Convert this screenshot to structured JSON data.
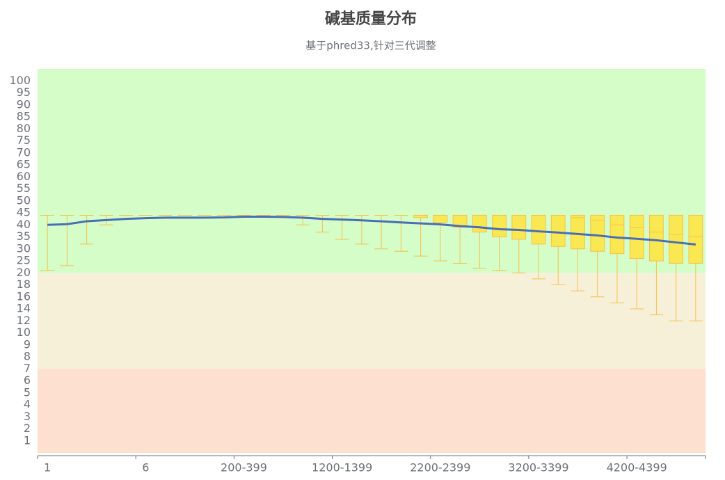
{
  "chart_data": {
    "type": "boxplot",
    "title": "碱基质量分布",
    "subtitle": "基于phred33,针对三代调整",
    "categories": [
      "1",
      null,
      null,
      null,
      null,
      "6",
      null,
      null,
      null,
      null,
      "200-399",
      null,
      null,
      null,
      null,
      "1200-1399",
      null,
      null,
      null,
      null,
      "2200-2399",
      null,
      null,
      null,
      null,
      "3200-3399",
      null,
      null,
      null,
      null,
      "4200-4399",
      null,
      null,
      null
    ],
    "boxes": {
      "low": [
        21,
        23,
        32,
        40,
        44,
        44,
        44,
        44,
        44,
        44,
        44,
        44,
        44,
        40,
        37,
        34,
        32,
        30,
        29,
        27,
        25,
        24,
        22,
        21,
        20,
        19,
        18,
        17,
        16,
        15,
        14,
        13,
        12,
        12
      ],
      "q1": [
        44,
        44,
        44,
        44,
        44,
        44,
        44,
        44,
        44,
        44,
        44,
        44,
        44,
        44,
        44,
        44,
        44,
        44,
        44,
        43,
        41,
        39,
        37,
        35,
        34,
        32,
        31,
        30,
        29,
        28,
        26,
        25,
        24,
        24
      ],
      "median": [
        44,
        44,
        44,
        44,
        44,
        44,
        44,
        44,
        44,
        44,
        44,
        44,
        44,
        44,
        44,
        44,
        44,
        44,
        44,
        44,
        44,
        44,
        44,
        44,
        44,
        44,
        44,
        43,
        42,
        40,
        39,
        37,
        36,
        35
      ],
      "q3": [
        44,
        44,
        44,
        44,
        44,
        44,
        44,
        44,
        44,
        44,
        44,
        44,
        44,
        44,
        44,
        44,
        44,
        44,
        44,
        44,
        44,
        44,
        44,
        44,
        44,
        44,
        44,
        44,
        44,
        44,
        44,
        44,
        44,
        44
      ],
      "high": [
        44,
        44,
        44,
        44,
        44,
        44,
        44,
        44,
        44,
        44,
        44,
        44,
        44,
        44,
        44,
        44,
        44,
        44,
        44,
        44,
        44,
        44,
        44,
        44,
        44,
        44,
        44,
        44,
        44,
        44,
        44,
        44,
        44,
        44
      ]
    },
    "box_color": "#f9e852",
    "box_stroke": "#f6c04c",
    "line": {
      "color": "#4a6db5",
      "values": [
        40,
        40.3,
        41.5,
        42,
        42.5,
        42.8,
        43,
        43,
        43,
        43.1,
        43.4,
        43.4,
        43.3,
        43,
        42.5,
        42.2,
        41.9,
        41.5,
        41,
        40.6,
        40.2,
        39.5,
        39,
        38.2,
        37.9,
        37.3,
        36.8,
        36.2,
        35.6,
        34.7,
        34.2,
        33.6,
        32.7,
        31.8
      ]
    },
    "ylim": [
      0,
      105
    ],
    "yticks": [
      1,
      2,
      3,
      4,
      5,
      6,
      7,
      8,
      9,
      10,
      12,
      14,
      16,
      18,
      20,
      25,
      30,
      35,
      40,
      45,
      50,
      55,
      60,
      65,
      70,
      75,
      80,
      85,
      90,
      95,
      100
    ],
    "bands": [
      {
        "from": 0,
        "to": 7,
        "color": "#fde0cf"
      },
      {
        "from": 7,
        "to": 20,
        "color": "#f7f0d8"
      },
      {
        "from": 20,
        "to": 105,
        "color": "#d4fdc8"
      }
    ]
  }
}
